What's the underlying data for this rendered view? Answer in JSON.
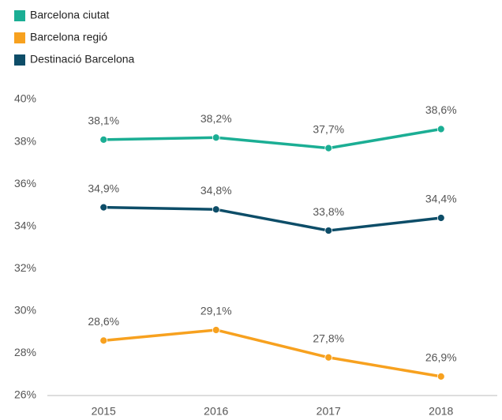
{
  "chart_data": {
    "type": "line",
    "categories": [
      "2015",
      "2016",
      "2017",
      "2018"
    ],
    "series": [
      {
        "name": "Barcelona ciutat",
        "color": "#1bae94",
        "values": [
          38.1,
          38.2,
          37.7,
          38.6
        ],
        "value_labels": [
          "38,1%",
          "38,2%",
          "37,7%",
          "38,6%"
        ]
      },
      {
        "name": "Barcelona regió",
        "color": "#f7a11f",
        "values": [
          28.6,
          29.1,
          27.8,
          26.9
        ],
        "value_labels": [
          "28,6%",
          "29,1%",
          "27,8%",
          "26,9%"
        ]
      },
      {
        "name": "Destinació Barcelona",
        "color": "#0d4d68",
        "values": [
          34.9,
          34.8,
          33.8,
          34.4
        ],
        "value_labels": [
          "34,9%",
          "34,8%",
          "33,8%",
          "34,4%"
        ]
      }
    ],
    "ylim": [
      26,
      40
    ],
    "yticks": [
      {
        "value": 26,
        "label": "26%"
      },
      {
        "value": 28,
        "label": "28%"
      },
      {
        "value": 30,
        "label": "30%"
      },
      {
        "value": 32,
        "label": "32%"
      },
      {
        "value": 34,
        "label": "34%"
      },
      {
        "value": 36,
        "label": "36%"
      },
      {
        "value": 38,
        "label": "38%"
      },
      {
        "value": 40,
        "label": "40%"
      }
    ],
    "grid": false,
    "legend": "top-left"
  }
}
